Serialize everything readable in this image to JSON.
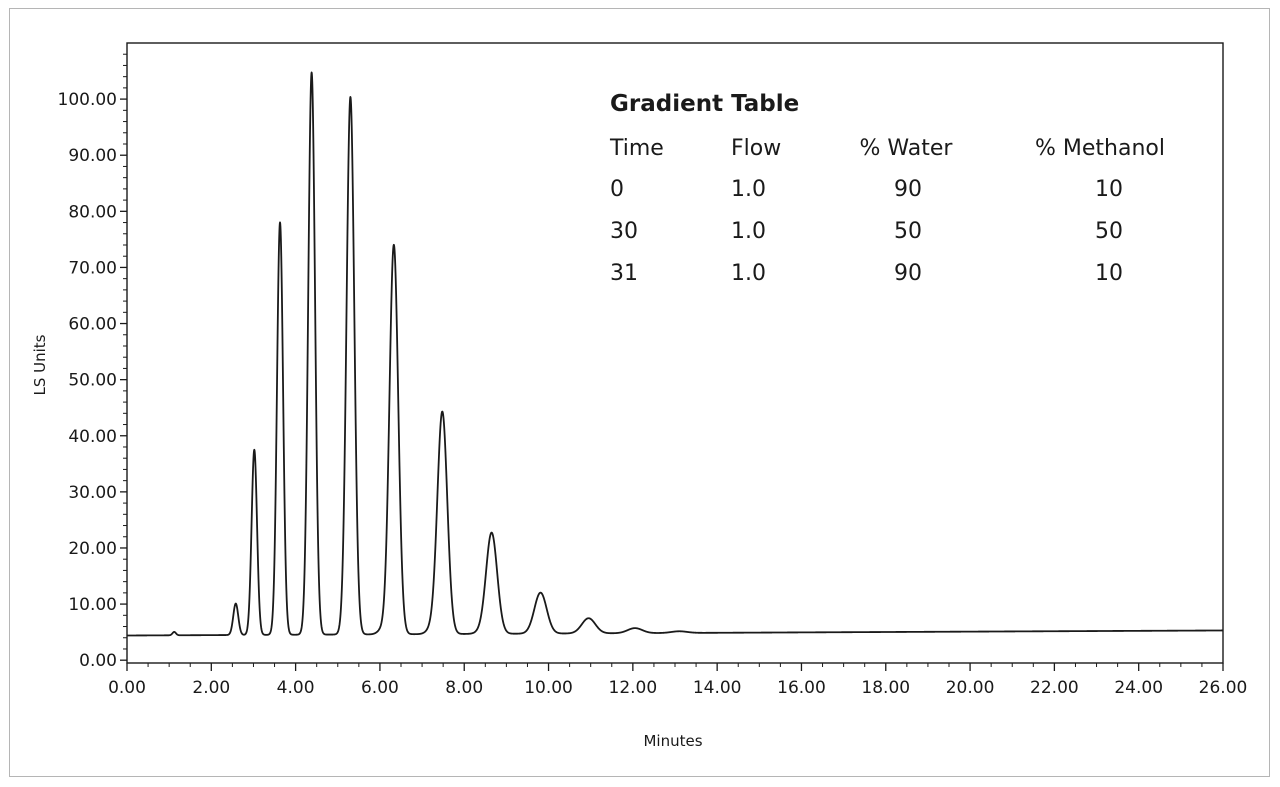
{
  "chart_data": {
    "type": "line",
    "xlabel": "Minutes",
    "ylabel": "LS Units",
    "xlim": [
      0,
      26
    ],
    "ylim": [
      -0.5,
      110
    ],
    "x_ticks": [
      "0.00",
      "2.00",
      "4.00",
      "6.00",
      "8.00",
      "10.00",
      "12.00",
      "14.00",
      "16.00",
      "18.00",
      "20.00",
      "22.00",
      "24.00",
      "26.00"
    ],
    "y_ticks": [
      "0.00",
      "10.00",
      "20.00",
      "30.00",
      "40.00",
      "50.00",
      "60.00",
      "70.00",
      "80.00",
      "90.00",
      "100.00"
    ],
    "grid": false,
    "line_color": "#1a1a1a",
    "baseline": {
      "start": 4.4,
      "end": 5.3
    },
    "peaks": [
      {
        "x": 1.12,
        "height": 0.6
      },
      {
        "x": 2.58,
        "height": 5.6
      },
      {
        "x": 3.02,
        "height": 33.0
      },
      {
        "x": 3.63,
        "height": 73.5
      },
      {
        "x": 4.38,
        "height": 100.2
      },
      {
        "x": 5.3,
        "height": 95.8
      },
      {
        "x": 6.05,
        "height": 0.8
      },
      {
        "x": 6.33,
        "height": 69.4
      },
      {
        "x": 7.22,
        "height": 0.8
      },
      {
        "x": 7.48,
        "height": 39.6
      },
      {
        "x": 8.4,
        "height": 0.3
      },
      {
        "x": 8.65,
        "height": 18.0
      },
      {
        "x": 9.81,
        "height": 7.3
      },
      {
        "x": 10.95,
        "height": 2.7
      },
      {
        "x": 12.05,
        "height": 0.9
      },
      {
        "x": 13.1,
        "height": 0.3
      }
    ]
  },
  "gradient_table": {
    "title": "Gradient Table",
    "headers": [
      "Time",
      "Flow",
      "% Water",
      "% Methanol"
    ],
    "rows": [
      [
        "0",
        "1.0",
        "90",
        "10"
      ],
      [
        "30",
        "1.0",
        "50",
        "50"
      ],
      [
        "31",
        "1.0",
        "90",
        "10"
      ]
    ]
  }
}
